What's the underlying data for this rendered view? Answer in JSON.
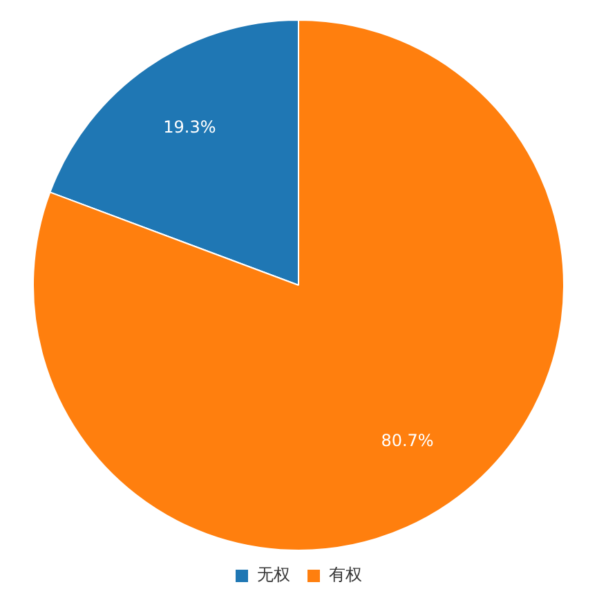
{
  "chart_data": {
    "type": "pie",
    "categories": [
      "无权",
      "有权"
    ],
    "values": [
      19.3,
      80.7
    ],
    "colors": [
      "#1f77b4",
      "#ff7f0e"
    ],
    "value_labels": [
      "19.3%",
      "80.7%"
    ],
    "legend": "bottom"
  }
}
